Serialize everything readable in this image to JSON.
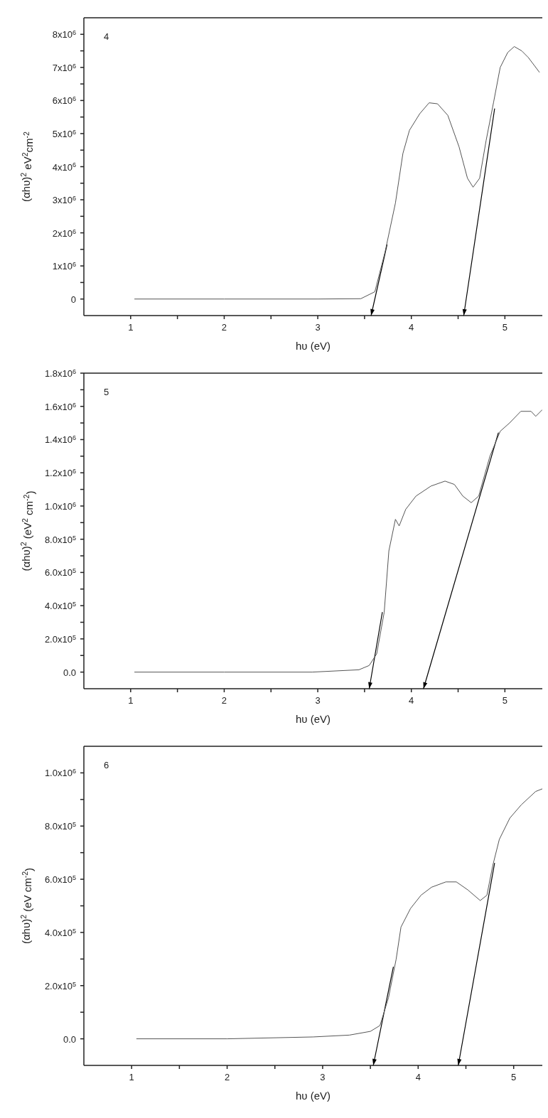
{
  "chart_data": [
    {
      "type": "line",
      "xlabel": "hυ (eV)",
      "ylabel": "(αhυ)$^{2}$  eV$^{2}$cm$^{-2}$",
      "annotations": [
        "4"
      ],
      "xlim": [
        0.5,
        5.4
      ],
      "ylim": [
        -500000,
        8500000
      ],
      "xticks": [
        1,
        {
          "value": 1.5,
          "label": null
        },
        2,
        {
          "value": 2.5,
          "label": null
        },
        3,
        {
          "value": 3.5,
          "label": null
        },
        4,
        {
          "value": 4.5,
          "label": null
        },
        5
      ],
      "yticks": [
        {
          "value": 0,
          "label": "0"
        },
        {
          "value": 500000,
          "label": null
        },
        {
          "value": 1000000,
          "label": "1x10$^{6}$"
        },
        {
          "value": 1500000,
          "label": null
        },
        {
          "value": 2000000,
          "label": "2x10$^{6}$"
        },
        {
          "value": 2500000,
          "label": null
        },
        {
          "value": 3000000,
          "label": "3x10$^{6}$"
        },
        {
          "value": 3500000,
          "label": null
        },
        {
          "value": 4000000,
          "label": "4x10$^{6}$"
        },
        {
          "value": 4500000,
          "label": null
        },
        {
          "value": 5000000,
          "label": "5x10$^{6}$"
        },
        {
          "value": 5500000,
          "label": null
        },
        {
          "value": 6000000,
          "label": "6x10$^{6}$"
        },
        {
          "value": 6500000,
          "label": null
        },
        {
          "value": 7000000,
          "label": "7x10$^{6}$"
        },
        {
          "value": 7500000,
          "label": null
        },
        {
          "value": 8000000,
          "label": "8x10$^{6}$"
        }
      ],
      "marker": "none",
      "line_style": "solid",
      "x": [
        1.04,
        2,
        3,
        3.46,
        3.61,
        3.72,
        3.83,
        3.91,
        3.98,
        4.09,
        4.19,
        4.28,
        4.39,
        4.51,
        4.6,
        4.66,
        4.73,
        4.8,
        4.88,
        4.95,
        5.03,
        5.1,
        5.18,
        5.25,
        5.37
      ],
      "series": [
        {
          "color": "#555555",
          "values": [
            0,
            0,
            0,
            10000,
            220000,
            1430000,
            2900000,
            4400000,
            5100000,
            5600000,
            5930000,
            5900000,
            5550000,
            4600000,
            3650000,
            3380000,
            3650000,
            4800000,
            5960000,
            7000000,
            7450000,
            7630000,
            7500000,
            7300000,
            6850000
          ]
        },
        {
          "type": "line",
          "color": "#000000",
          "x": [
            3.57,
            3.74
          ],
          "values": [
            -500000,
            1640000
          ]
        },
        {
          "type": "line",
          "color": "#000000",
          "x": [
            4.56,
            4.89
          ],
          "values": [
            -500000,
            5750000
          ]
        }
      ]
    },
    {
      "type": "line",
      "xlabel": "hυ (eV)",
      "ylabel": "(αhυ)$^{2}$ (eV$^{2}$ cm$^{-2}$)",
      "annotations": [
        "5"
      ],
      "xlim": [
        0.5,
        5.4
      ],
      "ylim": [
        -100000,
        1800000
      ],
      "xticks": [
        1,
        {
          "value": 1.5,
          "label": null
        },
        2,
        {
          "value": 2.5,
          "label": null
        },
        3,
        {
          "value": 3.5,
          "label": null
        },
        4,
        {
          "value": 4.5,
          "label": null
        },
        5
      ],
      "yticks": [
        {
          "value": 0,
          "label": "0.0"
        },
        {
          "value": 100000,
          "label": null
        },
        {
          "value": 200000,
          "label": "2.0x10$^{5}$"
        },
        {
          "value": 300000,
          "label": null
        },
        {
          "value": 400000,
          "label": "4.0x10$^{5}$"
        },
        {
          "value": 500000,
          "label": null
        },
        {
          "value": 600000,
          "label": "6.0x10$^{5}$"
        },
        {
          "value": 700000,
          "label": null
        },
        {
          "value": 800000,
          "label": "8.0x10$^{5}$"
        },
        {
          "value": 900000,
          "label": null
        },
        {
          "value": 1000000,
          "label": "1.0x10$^{6}$"
        },
        {
          "value": 1100000,
          "label": null
        },
        {
          "value": 1200000,
          "label": "1.2x10$^{6}$"
        },
        {
          "value": 1300000,
          "label": null
        },
        {
          "value": 1400000,
          "label": "1.4x10$^{6}$"
        },
        {
          "value": 1500000,
          "label": null
        },
        {
          "value": 1600000,
          "label": "1.6x10$^{6}$"
        },
        {
          "value": 1700000,
          "label": null
        },
        {
          "value": 1800000,
          "label": "1.8x10$^{6}$"
        }
      ],
      "marker": "none",
      "line_style": "solid",
      "x": [
        1.04,
        2,
        2.94,
        3.44,
        3.55,
        3.63,
        3.71,
        3.76,
        3.83,
        3.87,
        3.94,
        4.05,
        4.21,
        4.36,
        4.46,
        4.55,
        4.64,
        4.72,
        4.84,
        4.95,
        5.05,
        5.17,
        5.28,
        5.33,
        5.4
      ],
      "series": [
        {
          "color": "#555555",
          "values": [
            0,
            0,
            0,
            14000,
            40000,
            110000,
            360000,
            730000,
            920000,
            880000,
            980000,
            1060000,
            1120000,
            1150000,
            1130000,
            1060000,
            1020000,
            1060000,
            1300000,
            1450000,
            1500000,
            1570000,
            1570000,
            1540000,
            1580000
          ]
        },
        {
          "type": "line",
          "color": "#000000",
          "x": [
            3.55,
            3.69
          ],
          "values": [
            -100000,
            360000
          ]
        },
        {
          "type": "line",
          "color": "#000000",
          "x": [
            4.13,
            4.93
          ],
          "values": [
            -100000,
            1440000
          ]
        }
      ]
    },
    {
      "type": "line",
      "xlabel": "hυ (eV)",
      "ylabel": "(αhυ)$^{2}$ (eV cm$^{-2}$)",
      "annotations": [
        "6"
      ],
      "xlim": [
        0.5,
        5.3
      ],
      "ylim": [
        -100000,
        1100000
      ],
      "xticks": [
        1,
        {
          "value": 1.5,
          "label": null
        },
        2,
        {
          "value": 2.5,
          "label": null
        },
        3,
        {
          "value": 3.5,
          "label": null
        },
        4,
        {
          "value": 4.5,
          "label": null
        },
        5
      ],
      "yticks": [
        {
          "value": 0,
          "label": "0.0"
        },
        {
          "value": 100000,
          "label": null
        },
        {
          "value": 200000,
          "label": "2.0x10$^{5}$"
        },
        {
          "value": 300000,
          "label": null
        },
        {
          "value": 400000,
          "label": "4.0x10$^{5}$"
        },
        {
          "value": 500000,
          "label": null
        },
        {
          "value": 600000,
          "label": "6.0x10$^{5}$"
        },
        {
          "value": 700000,
          "label": null
        },
        {
          "value": 800000,
          "label": "8.0x10$^{5}$"
        },
        {
          "value": 900000,
          "label": null
        },
        {
          "value": 1000000,
          "label": "1.0x10$^{6}$"
        }
      ],
      "marker": "none",
      "line_style": "solid",
      "x": [
        1.05,
        2,
        2.9,
        3.28,
        3.5,
        3.6,
        3.69,
        3.77,
        3.82,
        3.92,
        4.03,
        4.14,
        4.29,
        4.4,
        4.52,
        4.65,
        4.72,
        4.78,
        4.85,
        4.96,
        5.08,
        5.23,
        5.3
      ],
      "series": [
        {
          "color": "#555555",
          "values": [
            0,
            0,
            7000,
            14000,
            28000,
            50000,
            155000,
            300000,
            420000,
            490000,
            540000,
            570000,
            590000,
            590000,
            560000,
            520000,
            540000,
            650000,
            750000,
            830000,
            880000,
            930000,
            940000
          ]
        },
        {
          "type": "line",
          "color": "#000000",
          "x": [
            3.53,
            3.74
          ],
          "values": [
            -100000,
            270000
          ]
        },
        {
          "type": "line",
          "color": "#000000",
          "x": [
            4.42,
            4.8
          ],
          "values": [
            -100000,
            660000
          ]
        }
      ]
    }
  ]
}
